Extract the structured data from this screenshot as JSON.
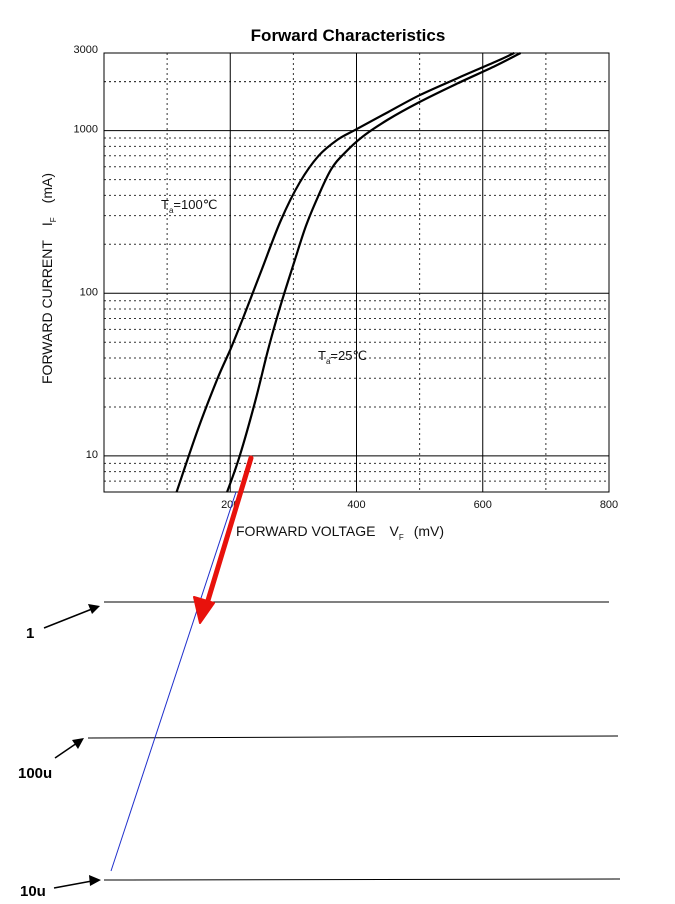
{
  "chart_data": {
    "type": "line",
    "title": "Forward Characteristics",
    "xlabel": {
      "text": "FORWARD VOLTAGE",
      "symbol": "V",
      "sub": "F",
      "unit": "(mV)"
    },
    "ylabel": {
      "text": "FORWARD CURRENT",
      "symbol": "I",
      "sub": "F",
      "unit": "(mA)"
    },
    "x_ticks": [
      "200",
      "400",
      "600",
      "800"
    ],
    "x_tick_values": [
      200,
      400,
      600,
      800
    ],
    "y_ticks": [
      "10",
      "100",
      "1000",
      "3000"
    ],
    "y_tick_values": [
      10,
      100,
      1000,
      3000
    ],
    "xlim": [
      0,
      800
    ],
    "ylim": [
      6,
      3000
    ],
    "y_scale": "log",
    "grid": true,
    "series": [
      {
        "name": "Ta=100℃",
        "label_main": "T",
        "label_sub": "a",
        "label_rest": "=100℃",
        "color": "#000000",
        "x": [
          115,
          150,
          180,
          200,
          220,
          250,
          280,
          310,
          340,
          370,
          400,
          450,
          500,
          560,
          620,
          650
        ],
        "y": [
          6,
          15,
          30,
          45,
          70,
          140,
          280,
          480,
          700,
          880,
          1020,
          1300,
          1650,
          2100,
          2650,
          3000
        ]
      },
      {
        "name": "Ta=25℃",
        "label_main": "T",
        "label_sub": "a",
        "label_rest": "=25℃",
        "color": "#000000",
        "x": [
          195,
          215,
          240,
          260,
          280,
          300,
          320,
          340,
          360,
          380,
          410,
          450,
          500,
          560,
          620,
          660
        ],
        "y": [
          6,
          10,
          22,
          45,
          85,
          150,
          260,
          400,
          580,
          720,
          920,
          1170,
          1500,
          1950,
          2500,
          3000
        ]
      }
    ],
    "extension": {
      "levels": [
        {
          "label": "1",
          "value": 1
        },
        {
          "label": "100u",
          "value": 0.0001
        },
        {
          "label": "10u",
          "value": 1e-05
        }
      ],
      "line_color": "#1f2fcc",
      "arrow_color": "#e8120c"
    }
  }
}
